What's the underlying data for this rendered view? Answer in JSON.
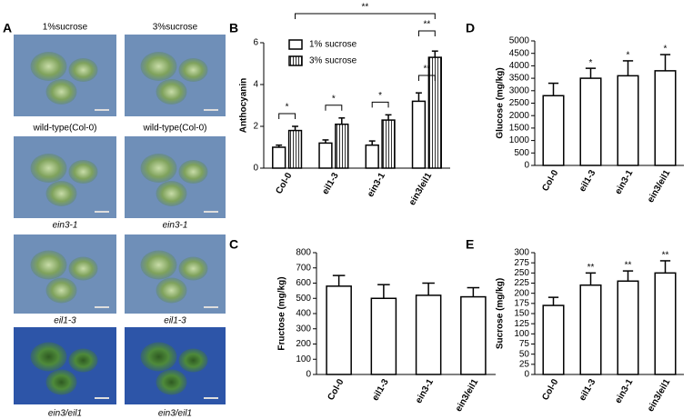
{
  "panel_a": {
    "letter": "A",
    "columns": [
      "1%sucrose",
      "3%sucrose"
    ],
    "labels": [
      [
        "wild-type(Col-0)",
        "wild-type(Col-0)"
      ],
      [
        "ein3-1",
        "ein3-1"
      ],
      [
        "eil1-3",
        "eil1-3"
      ],
      [
        "ein3/eil1",
        "ein3/eil1"
      ]
    ]
  },
  "chart_data": [
    {
      "type": "bar",
      "panel": "B",
      "ylabel": "Anthocyanin",
      "categories": [
        "Col-0",
        "eil1-3",
        "ein3-1",
        "ein3/eil1"
      ],
      "series": [
        {
          "name": "1% sucrose",
          "color": "#ffffff",
          "pattern": "none",
          "values": [
            1.0,
            1.2,
            1.1,
            3.2
          ],
          "errors": [
            0.1,
            0.15,
            0.2,
            0.4
          ]
        },
        {
          "name": "3% sucrose",
          "color": "#ffffff",
          "pattern": "vertical-lines",
          "values": [
            1.8,
            2.1,
            2.3,
            5.3
          ],
          "errors": [
            0.2,
            0.3,
            0.25,
            0.3
          ]
        }
      ],
      "annotations": [
        "*",
        "*",
        "*",
        "**",
        "**",
        "**"
      ],
      "ylim": [
        0,
        6
      ],
      "yticks": [
        0,
        2,
        4,
        6
      ],
      "legend": "top-left"
    },
    {
      "type": "bar",
      "panel": "C",
      "ylabel": "Fructose (mg/kg)",
      "categories": [
        "Col-0",
        "eil1-3",
        "ein3-1",
        "ein3/eil1"
      ],
      "series": [
        {
          "color": "#ffffff",
          "pattern": "none",
          "values": [
            580,
            500,
            520,
            510
          ],
          "errors": [
            70,
            90,
            80,
            60
          ]
        }
      ],
      "ylim": [
        0,
        800
      ],
      "yticks": [
        0,
        100,
        200,
        300,
        400,
        500,
        600,
        700,
        800
      ]
    },
    {
      "type": "bar",
      "panel": "D",
      "ylabel": "Glucose  (mg/kg)",
      "categories": [
        "Col-0",
        "eil1-3",
        "ein3-1",
        "ein3/eil1"
      ],
      "series": [
        {
          "color": "#ffffff",
          "pattern": "none",
          "values": [
            2800,
            3500,
            3600,
            3800
          ],
          "errors": [
            500,
            400,
            600,
            650
          ]
        }
      ],
      "annotations": [
        null,
        "*",
        "*",
        "*"
      ],
      "ylim": [
        0,
        5000
      ],
      "yticks": [
        0,
        500,
        1000,
        1500,
        2000,
        2500,
        3000,
        3500,
        4000,
        4500,
        5000
      ]
    },
    {
      "type": "bar",
      "panel": "E",
      "ylabel": "Sucrose (mg/kg)",
      "categories": [
        "Col-0",
        "eil1-3",
        "ein3-1",
        "ein3/eil1"
      ],
      "series": [
        {
          "color": "#ffffff",
          "pattern": "none",
          "values": [
            170,
            220,
            230,
            250
          ],
          "errors": [
            20,
            30,
            25,
            30
          ]
        }
      ],
      "annotations": [
        null,
        "**",
        "**",
        "**"
      ],
      "ylim": [
        0,
        300
      ],
      "yticks": [
        0,
        25,
        50,
        75,
        100,
        125,
        150,
        175,
        200,
        225,
        250,
        275,
        300
      ]
    }
  ]
}
